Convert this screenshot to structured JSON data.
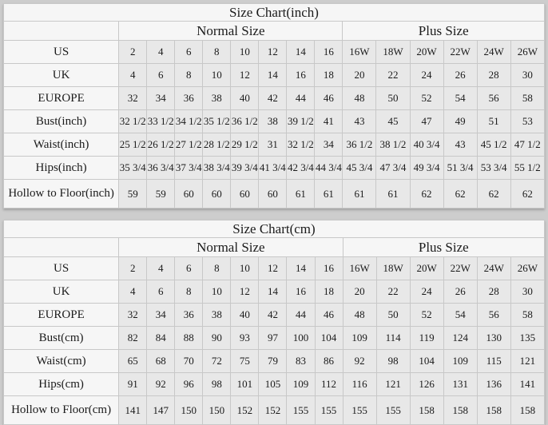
{
  "colors": {
    "page_background": "#cdcdcd",
    "header_cell_background": "#f6f6f6",
    "data_cell_background": "#e8e8e8",
    "grid_border": "#c8c8c8",
    "text": "#1b1b1b"
  },
  "chart_data": [
    {
      "type": "table",
      "title": "Size Chart(inch)",
      "group_headers": [
        "Normal Size",
        "Plus Size"
      ],
      "rows": [
        {
          "label": "US",
          "normal": [
            "2",
            "4",
            "6",
            "8",
            "10",
            "12",
            "14",
            "16"
          ],
          "plus": [
            "16W",
            "18W",
            "20W",
            "22W",
            "24W",
            "26W"
          ]
        },
        {
          "label": "UK",
          "normal": [
            "4",
            "6",
            "8",
            "10",
            "12",
            "14",
            "16",
            "18"
          ],
          "plus": [
            "20",
            "22",
            "24",
            "26",
            "28",
            "30"
          ]
        },
        {
          "label": "EUROPE",
          "normal": [
            "32",
            "34",
            "36",
            "38",
            "40",
            "42",
            "44",
            "46"
          ],
          "plus": [
            "48",
            "50",
            "52",
            "54",
            "56",
            "58"
          ]
        },
        {
          "label": "Bust(inch)",
          "normal": [
            "32 1/2",
            "33 1/2",
            "34 1/2",
            "35 1/2",
            "36 1/2",
            "38",
            "39 1/2",
            "41"
          ],
          "plus": [
            "43",
            "45",
            "47",
            "49",
            "51",
            "53"
          ]
        },
        {
          "label": "Waist(inch)",
          "normal": [
            "25 1/2",
            "26 1/2",
            "27 1/2",
            "28 1/2",
            "29 1/2",
            "31",
            "32 1/2",
            "34"
          ],
          "plus": [
            "36 1/2",
            "38 1/2",
            "40 3/4",
            "43",
            "45 1/2",
            "47 1/2"
          ]
        },
        {
          "label": "Hips(inch)",
          "normal": [
            "35 3/4",
            "36 3/4",
            "37 3/4",
            "38 3/4",
            "39 3/4",
            "41 3/4",
            "42 3/4",
            "44 3/4"
          ],
          "plus": [
            "45 3/4",
            "47 3/4",
            "49 3/4",
            "51 3/4",
            "53 3/4",
            "55 1/2"
          ]
        },
        {
          "label": "Hollow to Floor(inch)",
          "normal": [
            "59",
            "59",
            "60",
            "60",
            "60",
            "60",
            "61",
            "61"
          ],
          "plus": [
            "61",
            "61",
            "62",
            "62",
            "62",
            "62"
          ]
        }
      ]
    },
    {
      "type": "table",
      "title": "Size Chart(cm)",
      "group_headers": [
        "Normal Size",
        "Plus Size"
      ],
      "rows": [
        {
          "label": "US",
          "normal": [
            "2",
            "4",
            "6",
            "8",
            "10",
            "12",
            "14",
            "16"
          ],
          "plus": [
            "16W",
            "18W",
            "20W",
            "22W",
            "24W",
            "26W"
          ]
        },
        {
          "label": "UK",
          "normal": [
            "4",
            "6",
            "8",
            "10",
            "12",
            "14",
            "16",
            "18"
          ],
          "plus": [
            "20",
            "22",
            "24",
            "26",
            "28",
            "30"
          ]
        },
        {
          "label": "EUROPE",
          "normal": [
            "32",
            "34",
            "36",
            "38",
            "40",
            "42",
            "44",
            "46"
          ],
          "plus": [
            "48",
            "50",
            "52",
            "54",
            "56",
            "58"
          ]
        },
        {
          "label": "Bust(cm)",
          "normal": [
            "82",
            "84",
            "88",
            "90",
            "93",
            "97",
            "100",
            "104"
          ],
          "plus": [
            "109",
            "114",
            "119",
            "124",
            "130",
            "135"
          ]
        },
        {
          "label": "Waist(cm)",
          "normal": [
            "65",
            "68",
            "70",
            "72",
            "75",
            "79",
            "83",
            "86"
          ],
          "plus": [
            "92",
            "98",
            "104",
            "109",
            "115",
            "121"
          ]
        },
        {
          "label": "Hips(cm)",
          "normal": [
            "91",
            "92",
            "96",
            "98",
            "101",
            "105",
            "109",
            "112"
          ],
          "plus": [
            "116",
            "121",
            "126",
            "131",
            "136",
            "141"
          ]
        },
        {
          "label": "Hollow to Floor(cm)",
          "normal": [
            "141",
            "147",
            "150",
            "150",
            "152",
            "152",
            "155",
            "155"
          ],
          "plus": [
            "155",
            "155",
            "158",
            "158",
            "158",
            "158"
          ]
        }
      ]
    }
  ]
}
